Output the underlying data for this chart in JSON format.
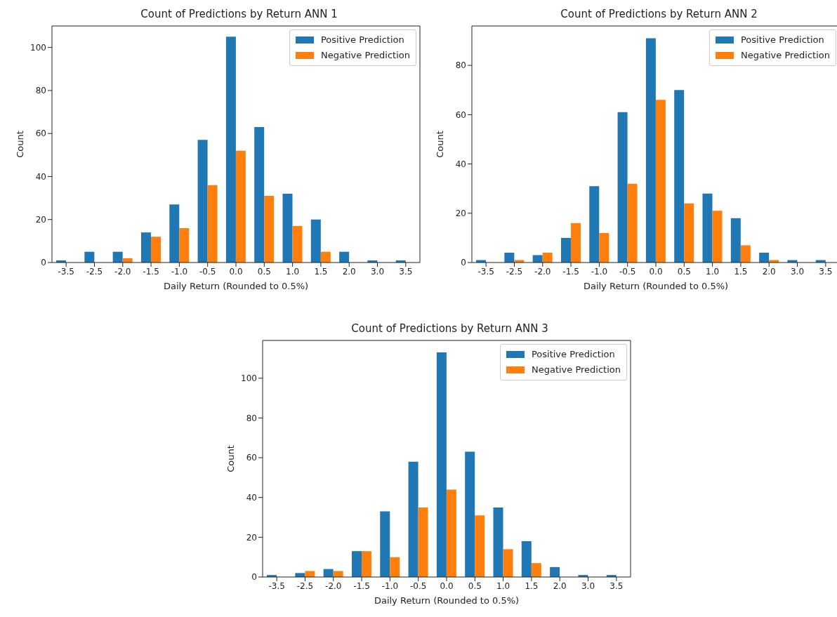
{
  "chart_data": [
    {
      "type": "bar",
      "title": "Count of Predictions by Return ANN 1",
      "xlabel": "Daily Return (Rounded to 0.5%)",
      "ylabel": "Count",
      "categories": [
        "-3.5",
        "-2.5",
        "-2.0",
        "-1.5",
        "-1.0",
        "-0.5",
        "0.0",
        "0.5",
        "1.0",
        "1.5",
        "2.0",
        "3.0",
        "3.5"
      ],
      "series": [
        {
          "name": "Positive Prediction",
          "color": "#1f77b4",
          "values": [
            1,
            5,
            5,
            14,
            27,
            57,
            105,
            63,
            32,
            20,
            5,
            1,
            1
          ]
        },
        {
          "name": "Negative Prediction",
          "color": "#ff7f0e",
          "values": [
            0,
            0,
            2,
            12,
            16,
            36,
            52,
            31,
            17,
            5,
            0,
            0,
            0
          ]
        }
      ],
      "ylim": [
        0,
        110
      ],
      "yticks": [
        0,
        20,
        40,
        60,
        80,
        100
      ],
      "grid": false,
      "legend": "top right"
    },
    {
      "type": "bar",
      "title": "Count of Predictions by Return ANN 2",
      "xlabel": "Daily Return (Rounded to 0.5%)",
      "ylabel": "Count",
      "categories": [
        "-3.5",
        "-2.5",
        "-2.0",
        "-1.5",
        "-1.0",
        "-0.5",
        "0.0",
        "0.5",
        "1.0",
        "1.5",
        "2.0",
        "3.0",
        "3.5"
      ],
      "series": [
        {
          "name": "Positive Prediction",
          "color": "#1f77b4",
          "values": [
            1,
            4,
            3,
            10,
            31,
            61,
            91,
            70,
            28,
            18,
            4,
            1,
            1
          ]
        },
        {
          "name": "Negative Prediction",
          "color": "#ff7f0e",
          "values": [
            0,
            1,
            4,
            16,
            12,
            32,
            66,
            24,
            21,
            7,
            1,
            0,
            0
          ]
        }
      ],
      "ylim": [
        0,
        96
      ],
      "yticks": [
        0,
        20,
        40,
        60,
        80
      ],
      "grid": false,
      "legend": "top right"
    },
    {
      "type": "bar",
      "title": "Count of Predictions by Return ANN 3",
      "xlabel": "Daily Return (Rounded to 0.5%)",
      "ylabel": "Count",
      "categories": [
        "-3.5",
        "-2.5",
        "-2.0",
        "-1.5",
        "-1.0",
        "-0.5",
        "0.0",
        "0.5",
        "1.0",
        "1.5",
        "2.0",
        "3.0",
        "3.5"
      ],
      "series": [
        {
          "name": "Positive Prediction",
          "color": "#1f77b4",
          "values": [
            1,
            2,
            4,
            13,
            33,
            58,
            113,
            63,
            35,
            18,
            5,
            1,
            1
          ]
        },
        {
          "name": "Negative Prediction",
          "color": "#ff7f0e",
          "values": [
            0,
            3,
            3,
            13,
            10,
            35,
            44,
            31,
            14,
            7,
            0,
            0,
            0
          ]
        }
      ],
      "ylim": [
        0,
        119
      ],
      "yticks": [
        0,
        20,
        40,
        60,
        80,
        100
      ],
      "grid": false,
      "legend": "top right"
    }
  ]
}
